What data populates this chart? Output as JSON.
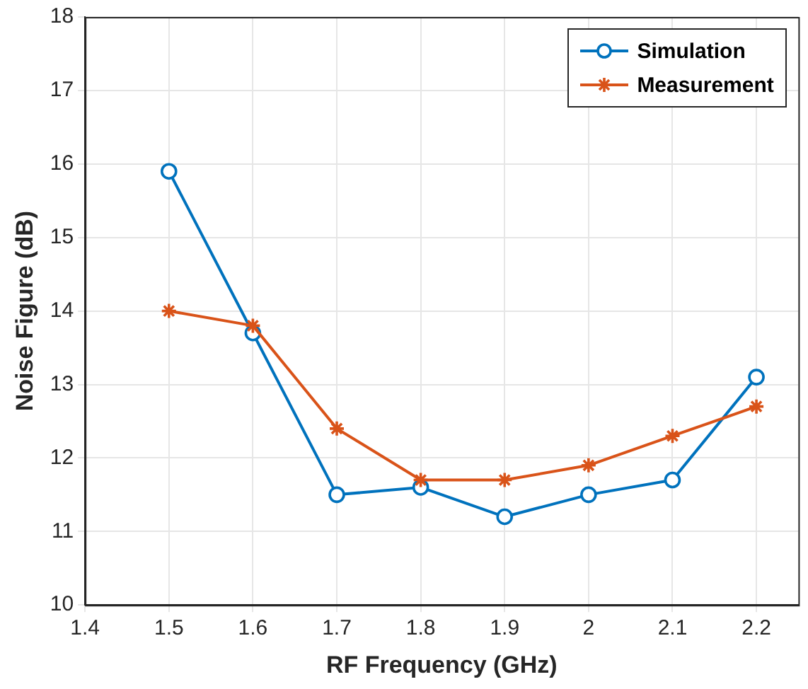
{
  "chart_data": {
    "type": "line",
    "xlabel": "RF Frequency (GHz)",
    "ylabel": "Noise Figure (dB)",
    "x": [
      1.5,
      1.6,
      1.7,
      1.8,
      1.9,
      2.0,
      2.1,
      2.2
    ],
    "series": [
      {
        "name": "Simulation",
        "color": "#0072bd",
        "marker": "circle",
        "values": [
          15.9,
          13.7,
          11.5,
          11.6,
          11.2,
          11.5,
          11.7,
          13.1
        ]
      },
      {
        "name": "Measurement",
        "color": "#d95319",
        "marker": "cross",
        "values": [
          14.0,
          13.8,
          12.4,
          11.7,
          11.7,
          11.9,
          12.3,
          12.7
        ]
      }
    ],
    "xlim": [
      1.4,
      2.25
    ],
    "xticks": [
      1.4,
      1.5,
      1.6,
      1.7,
      1.8,
      1.9,
      2,
      2.1,
      2.2
    ],
    "ylim": [
      10,
      18
    ],
    "yticks": [
      10,
      11,
      12,
      13,
      14,
      15,
      16,
      17,
      18
    ],
    "grid": true,
    "legend": "top right",
    "line_style": "solid"
  }
}
